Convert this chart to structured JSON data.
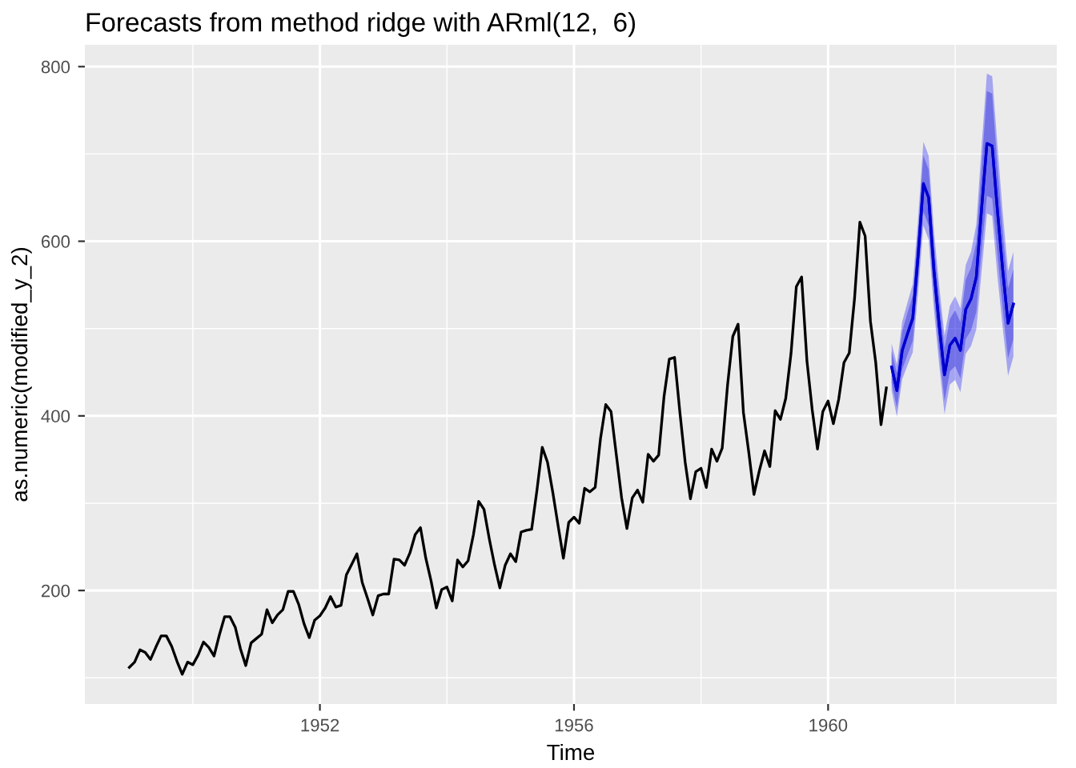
{
  "chart_data": {
    "type": "line",
    "title": "Forecasts from method ridge with ARml(12,  6)",
    "xlabel": "Time",
    "ylabel": "as.numeric(modified_y_2)",
    "xlim": [
      1948.3,
      1963.6
    ],
    "ylim": [
      70,
      825
    ],
    "xticks": [
      1952,
      1956,
      1960
    ],
    "yticks": [
      200,
      400,
      600,
      800
    ],
    "grid": true,
    "series": [
      {
        "color": "#000000",
        "x": [
          1949,
          1949.083,
          1949.167,
          1949.25,
          1949.333,
          1949.417,
          1949.5,
          1949.583,
          1949.667,
          1949.75,
          1949.833,
          1949.917,
          1950,
          1950.083,
          1950.167,
          1950.25,
          1950.333,
          1950.417,
          1950.5,
          1950.583,
          1950.667,
          1950.75,
          1950.833,
          1950.917,
          1951,
          1951.083,
          1951.167,
          1951.25,
          1951.333,
          1951.417,
          1951.5,
          1951.583,
          1951.667,
          1951.75,
          1951.833,
          1951.917,
          1952,
          1952.083,
          1952.167,
          1952.25,
          1952.333,
          1952.417,
          1952.5,
          1952.583,
          1952.667,
          1952.75,
          1952.833,
          1952.917,
          1953,
          1953.083,
          1953.167,
          1953.25,
          1953.333,
          1953.417,
          1953.5,
          1953.583,
          1953.667,
          1953.75,
          1953.833,
          1953.917,
          1954,
          1954.083,
          1954.167,
          1954.25,
          1954.333,
          1954.417,
          1954.5,
          1954.583,
          1954.667,
          1954.75,
          1954.833,
          1954.917,
          1955,
          1955.083,
          1955.167,
          1955.25,
          1955.333,
          1955.417,
          1955.5,
          1955.583,
          1955.667,
          1955.75,
          1955.833,
          1955.917,
          1956,
          1956.083,
          1956.167,
          1956.25,
          1956.333,
          1956.417,
          1956.5,
          1956.583,
          1956.667,
          1956.75,
          1956.833,
          1956.917,
          1957,
          1957.083,
          1957.167,
          1957.25,
          1957.333,
          1957.417,
          1957.5,
          1957.583,
          1957.667,
          1957.75,
          1957.833,
          1957.917,
          1958,
          1958.083,
          1958.167,
          1958.25,
          1958.333,
          1958.417,
          1958.5,
          1958.583,
          1958.667,
          1958.75,
          1958.833,
          1958.917,
          1959,
          1959.083,
          1959.167,
          1959.25,
          1959.333,
          1959.417,
          1959.5,
          1959.583,
          1959.667,
          1959.75,
          1959.833,
          1959.917,
          1960,
          1960.083,
          1960.167,
          1960.25,
          1960.333,
          1960.417,
          1960.5,
          1960.583,
          1960.667,
          1960.75,
          1960.833,
          1960.917
        ],
        "values": [
          112,
          118,
          132,
          129,
          121,
          135,
          148,
          148,
          136,
          119,
          104,
          118,
          115,
          126,
          141,
          135,
          125,
          149,
          170,
          170,
          158,
          133,
          114,
          140,
          145,
          150,
          178,
          163,
          172,
          178,
          199,
          199,
          184,
          162,
          146,
          166,
          171,
          180,
          193,
          181,
          183,
          218,
          230,
          242,
          209,
          191,
          172,
          194,
          196,
          196,
          236,
          235,
          229,
          243,
          264,
          272,
          237,
          211,
          180,
          201,
          204,
          188,
          235,
          227,
          234,
          264,
          302,
          293,
          259,
          229,
          203,
          229,
          242,
          233,
          267,
          269,
          270,
          315,
          364,
          347,
          312,
          274,
          237,
          278,
          284,
          277,
          317,
          313,
          318,
          374,
          413,
          405,
          355,
          306,
          271,
          306,
          315,
          301,
          356,
          348,
          355,
          422,
          465,
          467,
          404,
          347,
          305,
          336,
          340,
          318,
          362,
          348,
          363,
          435,
          491,
          505,
          404,
          359,
          310,
          337,
          360,
          342,
          406,
          396,
          420,
          472,
          548,
          559,
          463,
          407,
          362,
          405,
          417,
          391,
          419,
          461,
          472,
          535,
          622,
          606,
          508,
          461,
          390,
          432
        ]
      },
      {
        "color": "#0000ff",
        "x": [
          1961,
          1961.083,
          1961.167,
          1961.25,
          1961.333,
          1961.417,
          1961.5,
          1961.583,
          1961.667,
          1961.75,
          1961.833,
          1961.917,
          1962,
          1962.083,
          1962.167,
          1962.25,
          1962.333,
          1962.417,
          1962.5,
          1962.583,
          1962.667,
          1962.75,
          1962.833,
          1962.917
        ],
        "values": [
          456,
          429,
          475,
          494,
          512,
          584,
          666,
          650,
          566,
          503,
          447,
          481,
          489,
          475,
          522,
          534,
          559,
          638,
          712,
          709,
          634,
          566,
          506,
          528
        ],
        "lower": [
          429,
          399,
          442,
          458,
          473,
          542,
          618,
          602,
          521,
          458,
          402,
          436,
          441,
          427,
          471,
          480,
          499,
          566,
          632,
          629,
          559,
          500,
          446,
          468
        ],
        "upper": [
          483,
          459,
          508,
          530,
          551,
          626,
          714,
          698,
          611,
          548,
          492,
          526,
          537,
          523,
          573,
          588,
          619,
          710,
          792,
          789,
          709,
          632,
          566,
          588
        ]
      },
      {
        "color": "#0000cc",
        "x": [
          1961,
          1961.083,
          1961.167,
          1961.25,
          1961.333,
          1961.417,
          1961.5,
          1961.583,
          1961.667,
          1961.75,
          1961.833,
          1961.917,
          1962,
          1962.083,
          1962.167,
          1962.25,
          1962.333,
          1962.417,
          1962.5,
          1962.583,
          1962.667,
          1962.75,
          1962.833,
          1962.917
        ],
        "values": [
          456,
          429,
          475,
          494,
          512,
          584,
          666,
          650,
          566,
          503,
          447,
          481,
          489,
          475,
          522,
          534,
          559,
          638,
          712,
          709,
          634,
          566,
          506,
          528
        ],
        "lower": [
          438,
          409,
          453,
          470,
          486,
          556,
          634,
          618,
          536,
          473,
          417,
          451,
          457,
          443,
          488,
          498,
          519,
          590,
          652,
          649,
          584,
          522,
          466,
          488
        ],
        "upper": [
          474,
          449,
          497,
          518,
          538,
          612,
          698,
          682,
          596,
          533,
          477,
          511,
          521,
          507,
          556,
          570,
          599,
          686,
          772,
          769,
          684,
          610,
          546,
          568
        ]
      }
    ]
  }
}
